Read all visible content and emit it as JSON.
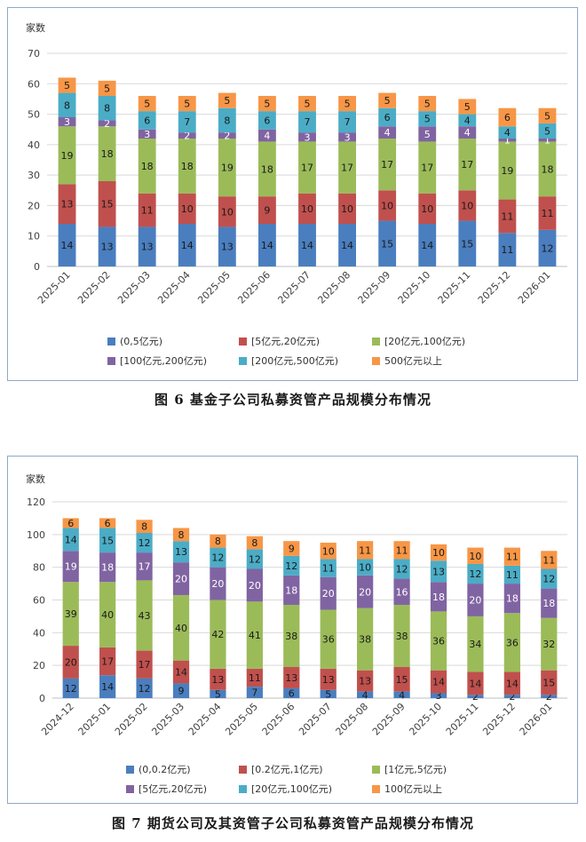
{
  "figures": [
    {
      "caption": "图 6   基金子公司私募资管产品规模分布情况",
      "colors": [
        "#4a7ebf",
        "#c0504d",
        "#9bbb59",
        "#8064a2",
        "#4bacc6",
        "#f79646"
      ],
      "chart_data": {
        "type": "bar",
        "stacked": true,
        "ylabel": "家数",
        "xlabel": "",
        "ylim": [
          0,
          70
        ],
        "yticks": [
          0,
          10,
          20,
          30,
          40,
          50,
          60,
          70
        ],
        "grid": true,
        "legend_position": "bottom",
        "categories": [
          "2025-01",
          "2025-02",
          "2025-03",
          "2025-04",
          "2025-05",
          "2025-06",
          "2025-07",
          "2025-08",
          "2025-09",
          "2025-10",
          "2025-11",
          "2025-12",
          "2026-01"
        ],
        "series": [
          {
            "name": "(0,5亿元)",
            "values": [
              14,
              13,
              13,
              14,
              13,
              14,
              14,
              14,
              15,
              14,
              15,
              11,
              12
            ]
          },
          {
            "name": "[5亿元,20亿元)",
            "values": [
              13,
              15,
              11,
              10,
              10,
              9,
              10,
              10,
              10,
              10,
              10,
              11,
              11
            ]
          },
          {
            "name": "[20亿元,100亿元)",
            "values": [
              19,
              18,
              18,
              18,
              19,
              18,
              17,
              17,
              17,
              17,
              17,
              19,
              18
            ]
          },
          {
            "name": "[100亿元,200亿元)",
            "values": [
              3,
              2,
              3,
              2,
              2,
              4,
              3,
              3,
              4,
              5,
              4,
              1,
              1
            ]
          },
          {
            "name": "[200亿元,500亿元)",
            "values": [
              8,
              8,
              6,
              7,
              8,
              6,
              7,
              7,
              6,
              5,
              4,
              4,
              5
            ]
          },
          {
            "name": "500亿元以上",
            "values": [
              5,
              5,
              5,
              5,
              5,
              5,
              5,
              5,
              5,
              5,
              5,
              6,
              5
            ]
          }
        ]
      }
    },
    {
      "caption": "图 7   期货公司及其资管子公司私募资管产品规模分布情况",
      "colors": [
        "#4a7ebf",
        "#c0504d",
        "#9bbb59",
        "#8064a2",
        "#4bacc6",
        "#f79646"
      ],
      "chart_data": {
        "type": "bar",
        "stacked": true,
        "ylabel": "家数",
        "xlabel": "",
        "ylim": [
          0,
          120
        ],
        "yticks": [
          0,
          20,
          40,
          60,
          80,
          100,
          120
        ],
        "grid": true,
        "legend_position": "bottom",
        "categories": [
          "2024-12",
          "2025-01",
          "2025-02",
          "2025-03",
          "2025-04",
          "2025-05",
          "2025-06",
          "2025-07",
          "2025-08",
          "2025-09",
          "2025-10",
          "2025-11",
          "2025-12",
          "2026-01"
        ],
        "series": [
          {
            "name": "(0,0.2亿元)",
            "values": [
              12,
              14,
              12,
              9,
              5,
              7,
              6,
              5,
              4,
              4,
              3,
              2,
              2,
              2
            ]
          },
          {
            "name": "[0.2亿元,1亿元)",
            "values": [
              20,
              17,
              17,
              14,
              13,
              11,
              13,
              13,
              13,
              15,
              14,
              14,
              14,
              15
            ]
          },
          {
            "name": "[1亿元,5亿元)",
            "values": [
              39,
              40,
              43,
              40,
              42,
              41,
              38,
              36,
              38,
              38,
              36,
              34,
              36,
              32
            ]
          },
          {
            "name": "[5亿元,20亿元)",
            "values": [
              19,
              18,
              17,
              20,
              20,
              20,
              18,
              20,
              20,
              16,
              18,
              20,
              18,
              18
            ]
          },
          {
            "name": "[20亿元,100亿元)",
            "values": [
              14,
              15,
              12,
              13,
              12,
              12,
              12,
              11,
              10,
              12,
              13,
              12,
              11,
              12
            ]
          },
          {
            "name": "100亿元以上",
            "values": [
              6,
              6,
              8,
              8,
              8,
              8,
              9,
              10,
              11,
              11,
              10,
              10,
              11,
              11
            ]
          }
        ]
      }
    }
  ]
}
